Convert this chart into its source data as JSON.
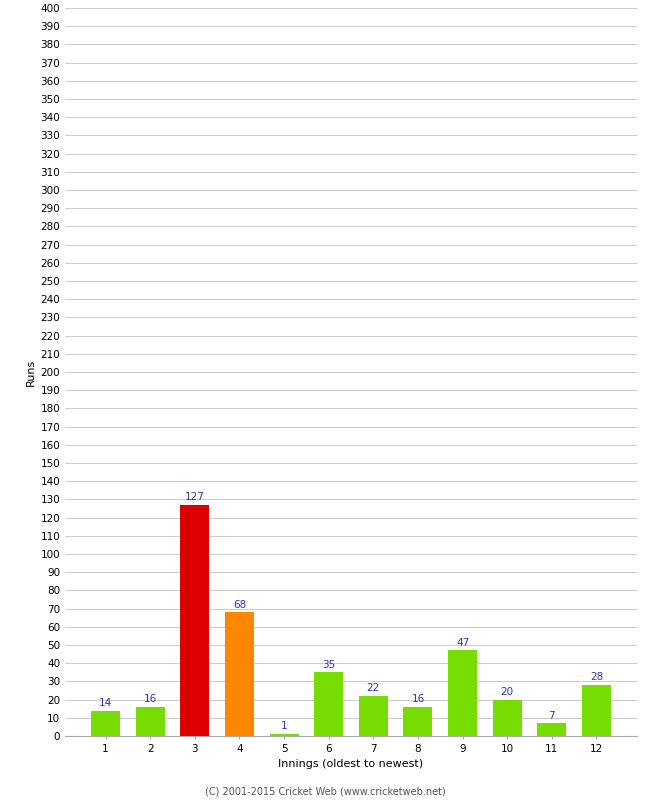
{
  "title": "",
  "xlabel": "Innings (oldest to newest)",
  "ylabel": "Runs",
  "categories": [
    "1",
    "2",
    "3",
    "4",
    "5",
    "6",
    "7",
    "8",
    "9",
    "10",
    "11",
    "12"
  ],
  "values": [
    14,
    16,
    127,
    68,
    1,
    35,
    22,
    16,
    47,
    20,
    7,
    28
  ],
  "bar_colors": [
    "#77dd00",
    "#77dd00",
    "#dd0000",
    "#ff8800",
    "#77dd00",
    "#77dd00",
    "#77dd00",
    "#77dd00",
    "#77dd00",
    "#77dd00",
    "#77dd00",
    "#77dd00"
  ],
  "label_color": "#3333bb",
  "ylabel_fontsize": 8,
  "xlabel_fontsize": 8,
  "tick_fontsize": 7.5,
  "label_fontsize": 7.5,
  "ylim": [
    0,
    400
  ],
  "ytick_step": 10,
  "footer": "(C) 2001-2015 Cricket Web (www.cricketweb.net)",
  "background_color": "#ffffff",
  "grid_color": "#cccccc",
  "bar_width": 0.65
}
